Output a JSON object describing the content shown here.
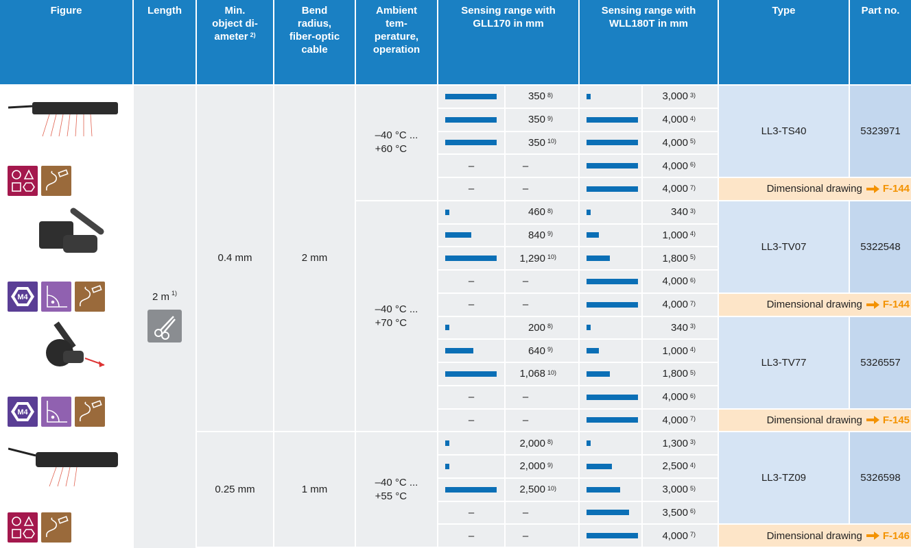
{
  "header": {
    "figure": "Figure",
    "length": "Length",
    "min_diameter": {
      "text": "Min.\nobject di-\nameter",
      "note": "2)"
    },
    "bend_radius": "Bend\nradius,\nfiber-optic\ncable",
    "temperature": "Ambient\ntem-\nperature,\noperation",
    "gll": "Sensing range with\nGLL170 in mm",
    "wll": "Sensing range with\nWLL180T in mm",
    "type": "Type",
    "part_no": "Part no."
  },
  "body": {
    "length": {
      "text": "2 m",
      "note": "1)"
    },
    "min_diameter": [
      "0.4 mm",
      "0.25 mm"
    ],
    "bend_radius": [
      "2 mm",
      "1 mm"
    ],
    "temperature": [
      "–40 °C ...\n+60 °C",
      "–40 °C ...\n+70 °C",
      "–40 °C ...\n+55 °C"
    ],
    "products": [
      {
        "type": "LL3-TS40",
        "part_no": "5323971",
        "drawing": {
          "text": "Dimensional drawing",
          "ref": "F-144"
        },
        "rows": [
          {
            "gll": {
              "text": "350",
              "note": "8)"
            },
            "wll": {
              "text": "3,000",
              "note": "3)"
            }
          },
          {
            "gll": {
              "text": "350",
              "note": "9)"
            },
            "wll": {
              "text": "4,000",
              "note": "4)"
            }
          },
          {
            "gll": {
              "text": "350",
              "note": "10)"
            },
            "wll": {
              "text": "4,000",
              "note": "5)"
            }
          },
          {
            "gll": {
              "text": "–"
            },
            "wll": {
              "text": "4,000",
              "note": "6)"
            }
          },
          {
            "gll": {
              "text": "–"
            },
            "wll": {
              "text": "4,000",
              "note": "7)"
            }
          }
        ]
      },
      {
        "type": "LL3-TV07",
        "part_no": "5322548",
        "icon_text": "M4",
        "drawing": {
          "text": "Dimensional drawing",
          "ref": "F-144"
        },
        "rows": [
          {
            "gll": {
              "text": "460",
              "note": "8)"
            },
            "wll": {
              "text": "340",
              "note": "3)"
            }
          },
          {
            "gll": {
              "text": "840",
              "note": "9)"
            },
            "wll": {
              "text": "1,000",
              "note": "4)"
            }
          },
          {
            "gll": {
              "text": "1,290",
              "note": "10)"
            },
            "wll": {
              "text": "1,800",
              "note": "5)"
            }
          },
          {
            "gll": {
              "text": "–"
            },
            "wll": {
              "text": "4,000",
              "note": "6)"
            }
          },
          {
            "gll": {
              "text": "–"
            },
            "wll": {
              "text": "4,000",
              "note": "7)"
            }
          }
        ]
      },
      {
        "type": "LL3-TV77",
        "part_no": "5326557",
        "icon_text": "M4",
        "drawing": {
          "text": "Dimensional drawing",
          "ref": "F-145"
        },
        "rows": [
          {
            "gll": {
              "text": "200",
              "note": "8)"
            },
            "wll": {
              "text": "340",
              "note": "3)"
            }
          },
          {
            "gll": {
              "text": "640",
              "note": "9)"
            },
            "wll": {
              "text": "1,000",
              "note": "4)"
            }
          },
          {
            "gll": {
              "text": "1,068",
              "note": "10)"
            },
            "wll": {
              "text": "1,800",
              "note": "5)"
            }
          },
          {
            "gll": {
              "text": "–"
            },
            "wll": {
              "text": "4,000",
              "note": "6)"
            }
          },
          {
            "gll": {
              "text": "–"
            },
            "wll": {
              "text": "4,000",
              "note": "7)"
            }
          }
        ]
      },
      {
        "type": "LL3-TZ09",
        "part_no": "5326598",
        "drawing": {
          "text": "Dimensional drawing",
          "ref": "F-146"
        },
        "rows": [
          {
            "gll": {
              "text": "2,000",
              "note": "8)"
            },
            "wll": {
              "text": "1,300",
              "note": "3)"
            }
          },
          {
            "gll": {
              "text": "2,000",
              "note": "9)"
            },
            "wll": {
              "text": "2,500",
              "note": "4)"
            }
          },
          {
            "gll": {
              "text": "2,500",
              "note": "10)"
            },
            "wll": {
              "text": "3,000",
              "note": "5)"
            }
          },
          {
            "gll": {
              "text": "–"
            },
            "wll": {
              "text": "3,500",
              "note": "6)"
            }
          },
          {
            "gll": {
              "text": "–"
            },
            "wll": {
              "text": "4,000",
              "note": "7)"
            }
          }
        ]
      }
    ]
  }
}
